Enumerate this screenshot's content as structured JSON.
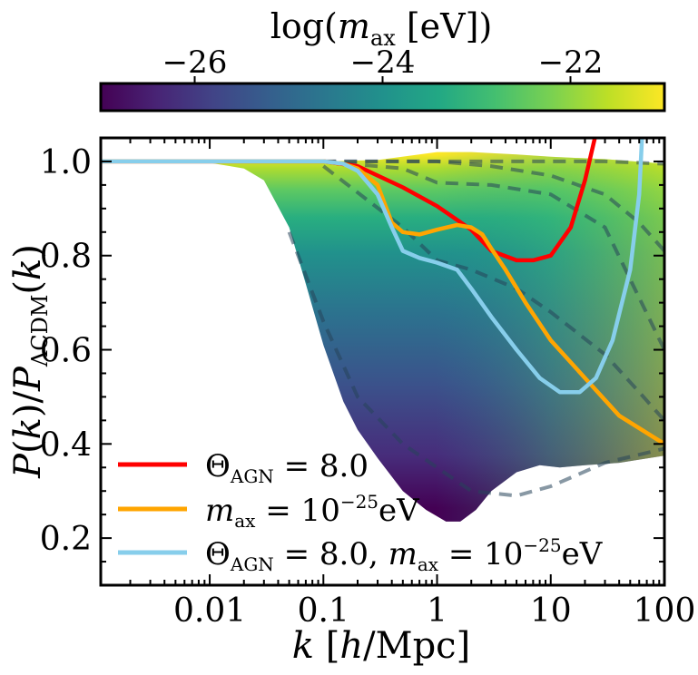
{
  "colorbar": {
    "label": "log(m_ax [eV])",
    "label_main": "log(",
    "label_var": "m",
    "label_sub": "ax",
    "label_unit": " [eV])",
    "ticks": [
      {
        "value": -26,
        "label": "−26"
      },
      {
        "value": -24,
        "label": "−24"
      },
      {
        "value": -22,
        "label": "−22"
      }
    ],
    "range": [
      -27.0,
      -21.0
    ],
    "colormap": "viridis"
  },
  "axes": {
    "ylabel_text": "P(k)/P_ΛCDM(k)",
    "xlabel_text": "k [h/Mpc]",
    "xscale": "log",
    "xlim": [
      0.0011,
      100
    ],
    "ylim": [
      0.1,
      1.05
    ],
    "xticks": [
      {
        "value": 0.01,
        "label": "0.01"
      },
      {
        "value": 0.1,
        "label": "0.1"
      },
      {
        "value": 1,
        "label": "1"
      },
      {
        "value": 10,
        "label": "10"
      },
      {
        "value": 100,
        "label": "100"
      }
    ],
    "yticks": [
      {
        "value": 0.2,
        "label": "0.2"
      },
      {
        "value": 0.4,
        "label": "0.4"
      },
      {
        "value": 0.6,
        "label": "0.6"
      },
      {
        "value": 0.8,
        "label": "0.8"
      },
      {
        "value": 1.0,
        "label": "1.0"
      }
    ]
  },
  "legend": {
    "placement": "lower-left",
    "entries": [
      {
        "label": "Θ_AGN = 8.0",
        "color": "#ff0000"
      },
      {
        "label": "m_ax = 10^−25 eV",
        "color": "#ffa500"
      },
      {
        "label": "Θ_AGN = 8.0, m_ax = 10^−25 eV",
        "color": "#87ceeb"
      }
    ]
  },
  "chart_data": {
    "type": "line",
    "x_label": "k [h/Mpc]",
    "y_label": "P(k)/P_ΛCDM(k)",
    "colorbar_label": "log(m_ax [eV])",
    "band": {
      "description_of_color": "log(m_ax [eV])",
      "lower_envelope": {
        "x": [
          0.0011,
          0.005,
          0.01,
          0.02,
          0.03,
          0.05,
          0.07,
          0.1,
          0.15,
          0.2,
          0.3,
          0.5,
          0.8,
          1.2,
          1.6,
          2.2,
          3,
          5,
          8,
          12,
          20,
          40,
          100
        ],
        "y": [
          1.0,
          1.0,
          0.997,
          0.985,
          0.96,
          0.86,
          0.74,
          0.61,
          0.49,
          0.43,
          0.37,
          0.3,
          0.26,
          0.235,
          0.235,
          0.26,
          0.3,
          0.34,
          0.355,
          0.35,
          0.355,
          0.36,
          0.375
        ]
      },
      "upper_envelope": {
        "x": [
          0.0011,
          0.1,
          0.3,
          1,
          2,
          5,
          10,
          30,
          100
        ],
        "y": [
          1.0,
          1.0,
          1.003,
          1.02,
          1.02,
          1.015,
          1.01,
          1.005,
          0.995
        ]
      },
      "dashed_contours": [
        {
          "x": [
            0.1,
            1,
            3,
            10,
            30,
            100
          ],
          "y": [
            1.0,
            1.0,
            1.0,
            1.0,
            1.0,
            0.995
          ]
        },
        {
          "x": [
            0.1,
            1,
            3,
            10,
            30,
            60,
            100
          ],
          "y": [
            1.0,
            1.0,
            0.99,
            0.97,
            0.93,
            0.87,
            0.81
          ]
        },
        {
          "x": [
            0.1,
            0.5,
            1,
            3,
            10,
            30,
            100
          ],
          "y": [
            1.0,
            0.985,
            0.955,
            0.95,
            0.93,
            0.86,
            0.6
          ]
        },
        {
          "x": [
            0.1,
            0.5,
            1,
            2,
            5,
            10,
            30,
            60,
            100
          ],
          "y": [
            0.99,
            0.86,
            0.79,
            0.77,
            0.73,
            0.68,
            0.59,
            0.51,
            0.45
          ]
        },
        {
          "x": [
            0.05,
            0.1,
            0.2,
            0.5,
            1,
            2,
            5,
            10,
            30,
            100
          ],
          "y": [
            0.85,
            0.66,
            0.5,
            0.4,
            0.35,
            0.3,
            0.29,
            0.31,
            0.36,
            0.39
          ]
        }
      ]
    },
    "series": [
      {
        "name": "Θ_AGN = 8.0",
        "color": "#ff0000",
        "x": [
          0.0011,
          0.1,
          0.2,
          0.3,
          0.5,
          1,
          2,
          3,
          5,
          7,
          10,
          15,
          20,
          25,
          28
        ],
        "y": [
          1.0,
          1.0,
          0.99,
          0.97,
          0.945,
          0.905,
          0.855,
          0.81,
          0.79,
          0.79,
          0.8,
          0.86,
          0.96,
          1.06,
          1.15
        ]
      },
      {
        "name": "m_ax = 10^−25 eV",
        "color": "#ffa500",
        "x": [
          0.0011,
          0.1,
          0.15,
          0.2,
          0.3,
          0.4,
          0.5,
          0.7,
          1,
          1.5,
          2,
          2.5,
          3,
          4,
          6,
          10,
          20,
          40,
          100
        ],
        "y": [
          1.0,
          1.0,
          0.995,
          0.985,
          0.95,
          0.87,
          0.85,
          0.845,
          0.855,
          0.865,
          0.86,
          0.845,
          0.815,
          0.77,
          0.7,
          0.62,
          0.54,
          0.46,
          0.4
        ]
      },
      {
        "name": "Θ_AGN = 8.0, m_ax = 10^−25 eV",
        "color": "#87ceeb",
        "x": [
          0.0011,
          0.1,
          0.15,
          0.2,
          0.3,
          0.4,
          0.5,
          0.7,
          1,
          1.5,
          2,
          3,
          5,
          8,
          12,
          18,
          25,
          35,
          50,
          60,
          65
        ],
        "y": [
          1.0,
          1.0,
          0.995,
          0.98,
          0.93,
          0.86,
          0.81,
          0.795,
          0.785,
          0.77,
          0.73,
          0.67,
          0.6,
          0.54,
          0.51,
          0.51,
          0.54,
          0.62,
          0.77,
          0.93,
          1.1
        ]
      }
    ],
    "reference_line": {
      "style": "dashed",
      "color": "#b9d8e5",
      "x": [
        0.0011,
        0.1
      ],
      "y": [
        1.0,
        1.0
      ]
    }
  }
}
